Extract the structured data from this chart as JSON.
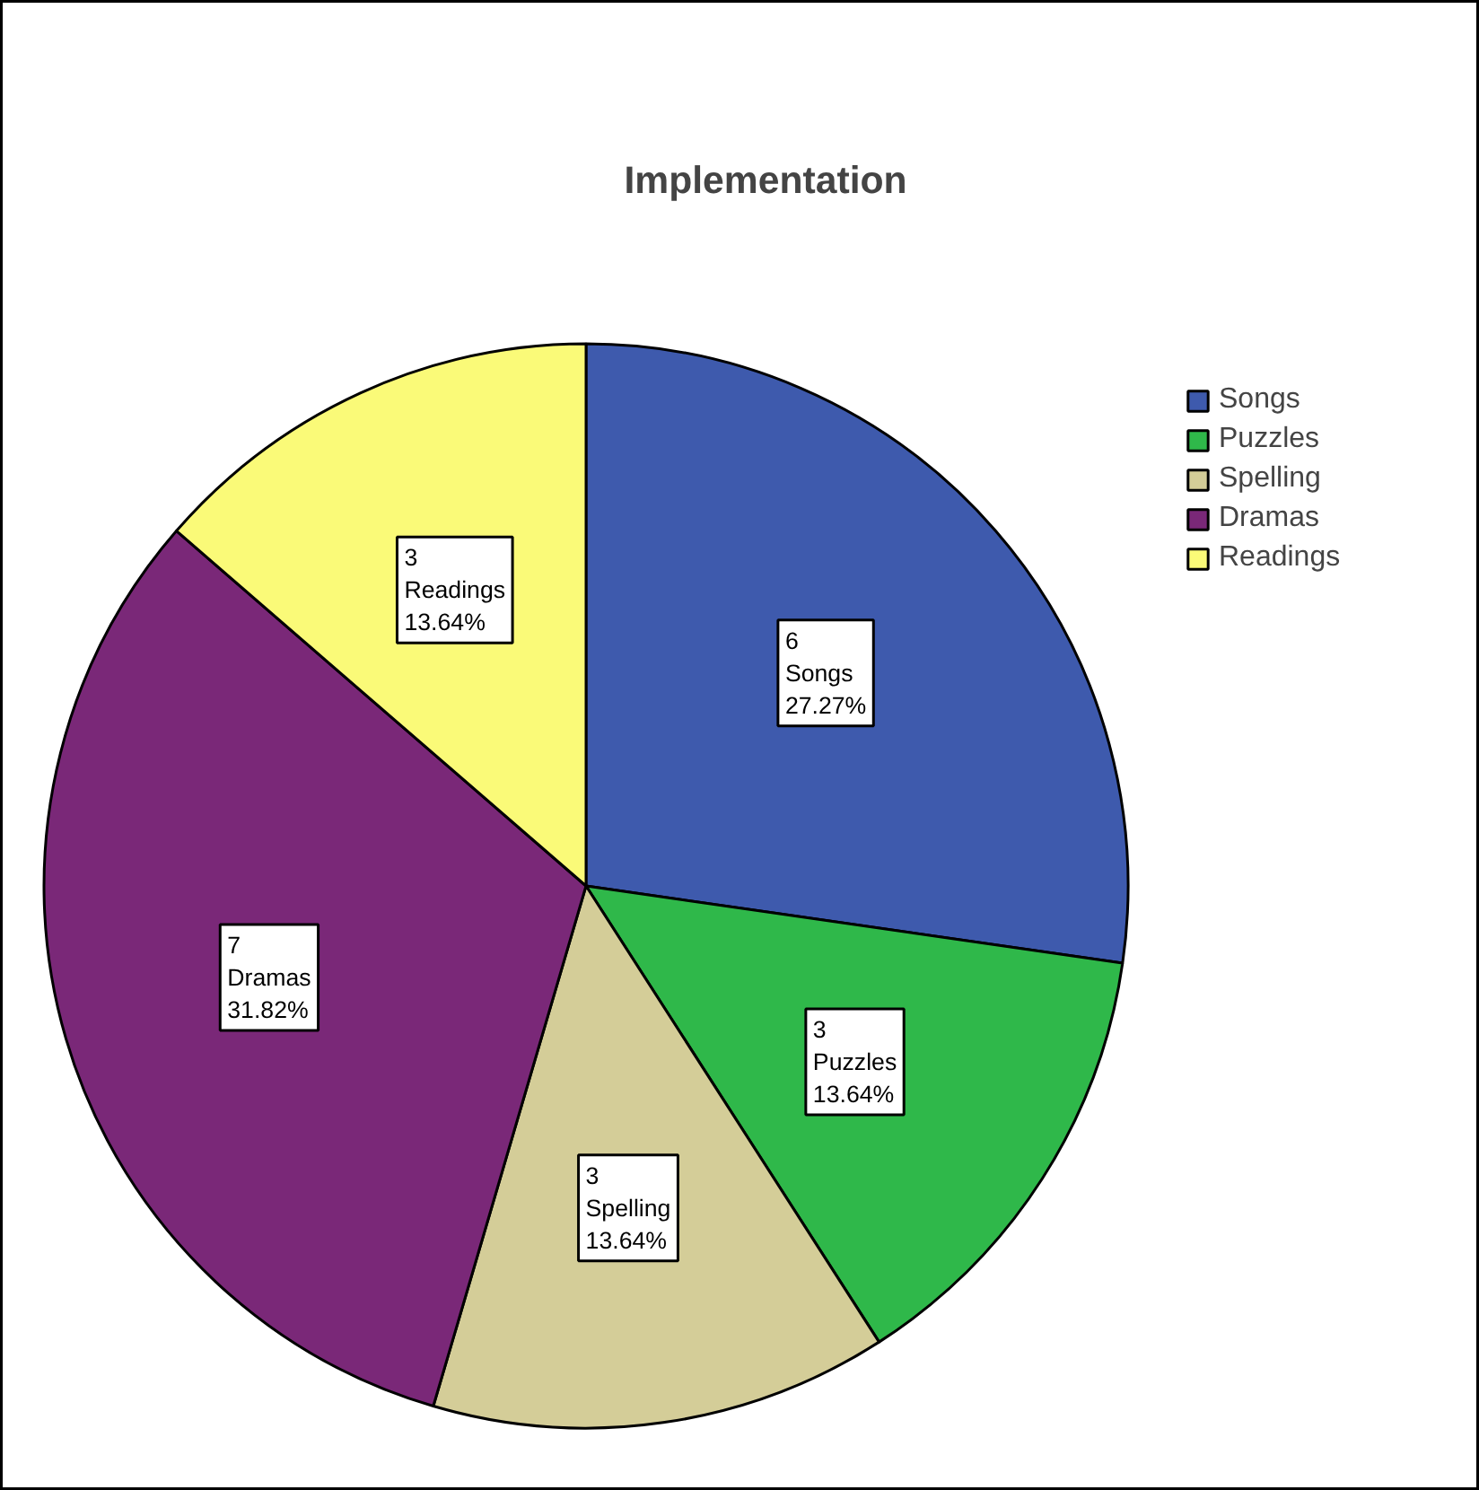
{
  "chart_data": {
    "type": "pie",
    "title": "Implementation",
    "categories": [
      "Songs",
      "Puzzles",
      "Spelling",
      "Dramas",
      "Readings"
    ],
    "values": [
      6,
      3,
      3,
      7,
      3
    ],
    "colors": [
      "#3e5aad",
      "#2fb84a",
      "#d4cd98",
      "#7a2878",
      "#fafa78"
    ],
    "value_labels": [
      "6\nSongs\n27.27%",
      "3\nPuzzles\n13.64%",
      "3\nSpelling\n13.64%",
      "7\nDramas\n31.82%",
      "3\nReadings\n13.64%"
    ],
    "legend": "top right"
  }
}
